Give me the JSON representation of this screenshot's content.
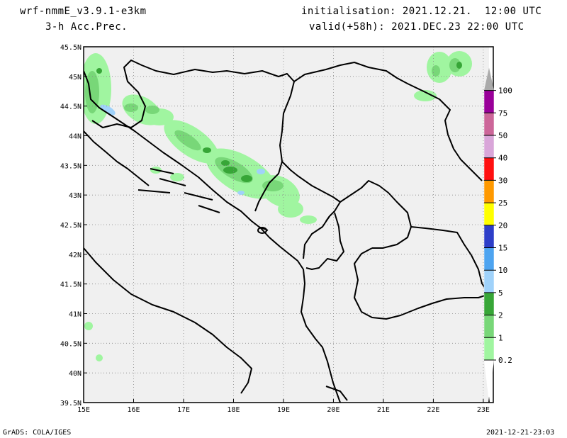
{
  "header": {
    "model": "wrf-nmmE_v3.9.1-e3km",
    "variable": "3-h Acc.Prec.",
    "init_line": "initialisation: 2021.12.21.  12:00 UTC",
    "valid_line": "valid(+58h): 2021.DEC.23 22:00 UTC"
  },
  "map": {
    "lon_range": [
      15,
      23.2
    ],
    "lat_range": [
      39.5,
      45.5
    ],
    "x_ticks": [
      "15E",
      "16E",
      "17E",
      "18E",
      "19E",
      "20E",
      "21E",
      "22E",
      "23E"
    ],
    "y_ticks": [
      "45.5N",
      "45N",
      "44.5N",
      "44N",
      "43.5N",
      "43N",
      "42.5N",
      "42N",
      "41.5N",
      "41N",
      "40.5N",
      "40N",
      "39.5N"
    ],
    "land_color": "#f0f0f0",
    "sea_color": "#ffffff"
  },
  "legend": {
    "labels": [
      "0.2",
      "1",
      "2",
      "5",
      "10",
      "15",
      "20",
      "25",
      "30",
      "40",
      "50",
      "75",
      "100"
    ],
    "colors": [
      "#a0f5a0",
      "#78d778",
      "#37a637",
      "#a0d2fa",
      "#4ea4f0",
      "#2d3ec8",
      "#ffff00",
      "#ff9900",
      "#ff1010",
      "#d9a6d9",
      "#cc6699",
      "#990099",
      "#aaaaaa"
    ]
  },
  "footer": {
    "left": "GrADS: COLA/IGES",
    "right": "2021-12-21-23:03"
  }
}
